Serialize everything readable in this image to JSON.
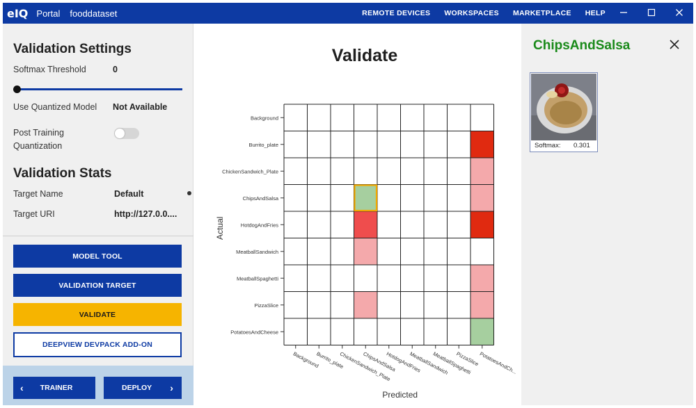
{
  "topbar": {
    "logo": "eIQ",
    "portal": "Portal",
    "project": "fooddataset",
    "links": [
      "REMOTE DEVICES",
      "WORKSPACES",
      "MARKETPLACE",
      "HELP"
    ],
    "window_controls": [
      "minimize-icon",
      "maximize-icon",
      "close-icon"
    ],
    "bg_color": "#0d3aa3"
  },
  "settings": {
    "title": "Validation Settings",
    "softmax_label": "Softmax Threshold",
    "softmax_value": "0",
    "quantized_label": "Use Quantized Model",
    "quantized_value": "Not Available",
    "ptq_label_1": "Post Training",
    "ptq_label_2": "Quantization"
  },
  "stats": {
    "title": "Validation Stats",
    "target_name_label": "Target Name",
    "target_name_value": "Default",
    "target_uri_label": "Target URI",
    "target_uri_value": "http://127.0.0...."
  },
  "buttons": {
    "model_tool": "MODEL TOOL",
    "validation_target": "VALIDATION TARGET",
    "validate": "VALIDATE",
    "devpack": "DEEPVIEW DEVPACK ADD-ON",
    "trainer": "TRAINER",
    "deploy": "DEPLOY",
    "prev_arrow": "‹",
    "next_arrow": "›"
  },
  "main": {
    "title": "Validate"
  },
  "chart_data": {
    "type": "heatmap",
    "xlabel": "Predicted",
    "ylabel": "Actual",
    "rows": [
      "Background",
      "Burrito_plate",
      "ChickenSandwich_Plate",
      "ChipsAndSalsa",
      "HotdogAndFries",
      "MeatballSandwich",
      "MeatballSpaghetti",
      "PizzaSlice",
      "PotatoesAndCheese"
    ],
    "columns": [
      "Background",
      "Burrito_plate",
      "ChickenSandwich_Plate",
      "ChipsAndSalsa",
      "HotdogAndFries",
      "MeatballSandwich",
      "MeatballSpaghetti",
      "PizzaSlice",
      "PotatoesAndCh..."
    ],
    "cells": [
      {
        "row": 1,
        "col": 8,
        "level": "high"
      },
      {
        "row": 2,
        "col": 8,
        "level": "low"
      },
      {
        "row": 3,
        "col": 3,
        "level": "correct",
        "selected": true
      },
      {
        "row": 3,
        "col": 8,
        "level": "low"
      },
      {
        "row": 4,
        "col": 3,
        "level": "mid"
      },
      {
        "row": 4,
        "col": 8,
        "level": "high"
      },
      {
        "row": 5,
        "col": 3,
        "level": "low"
      },
      {
        "row": 6,
        "col": 8,
        "level": "low"
      },
      {
        "row": 7,
        "col": 3,
        "level": "low"
      },
      {
        "row": 7,
        "col": 8,
        "level": "low"
      },
      {
        "row": 8,
        "col": 8,
        "level": "correct"
      }
    ],
    "colors": {
      "high": "#e02a10",
      "mid": "#ef4d4d",
      "low": "#f4a9ab",
      "correct": "#a6cf9f",
      "selected_border": "#f1a800",
      "grid": "#222222"
    }
  },
  "detail": {
    "title": "ChipsAndSalsa",
    "softmax_label": "Softmax:",
    "softmax_value": "0.301",
    "title_color": "#1a8a1a"
  }
}
